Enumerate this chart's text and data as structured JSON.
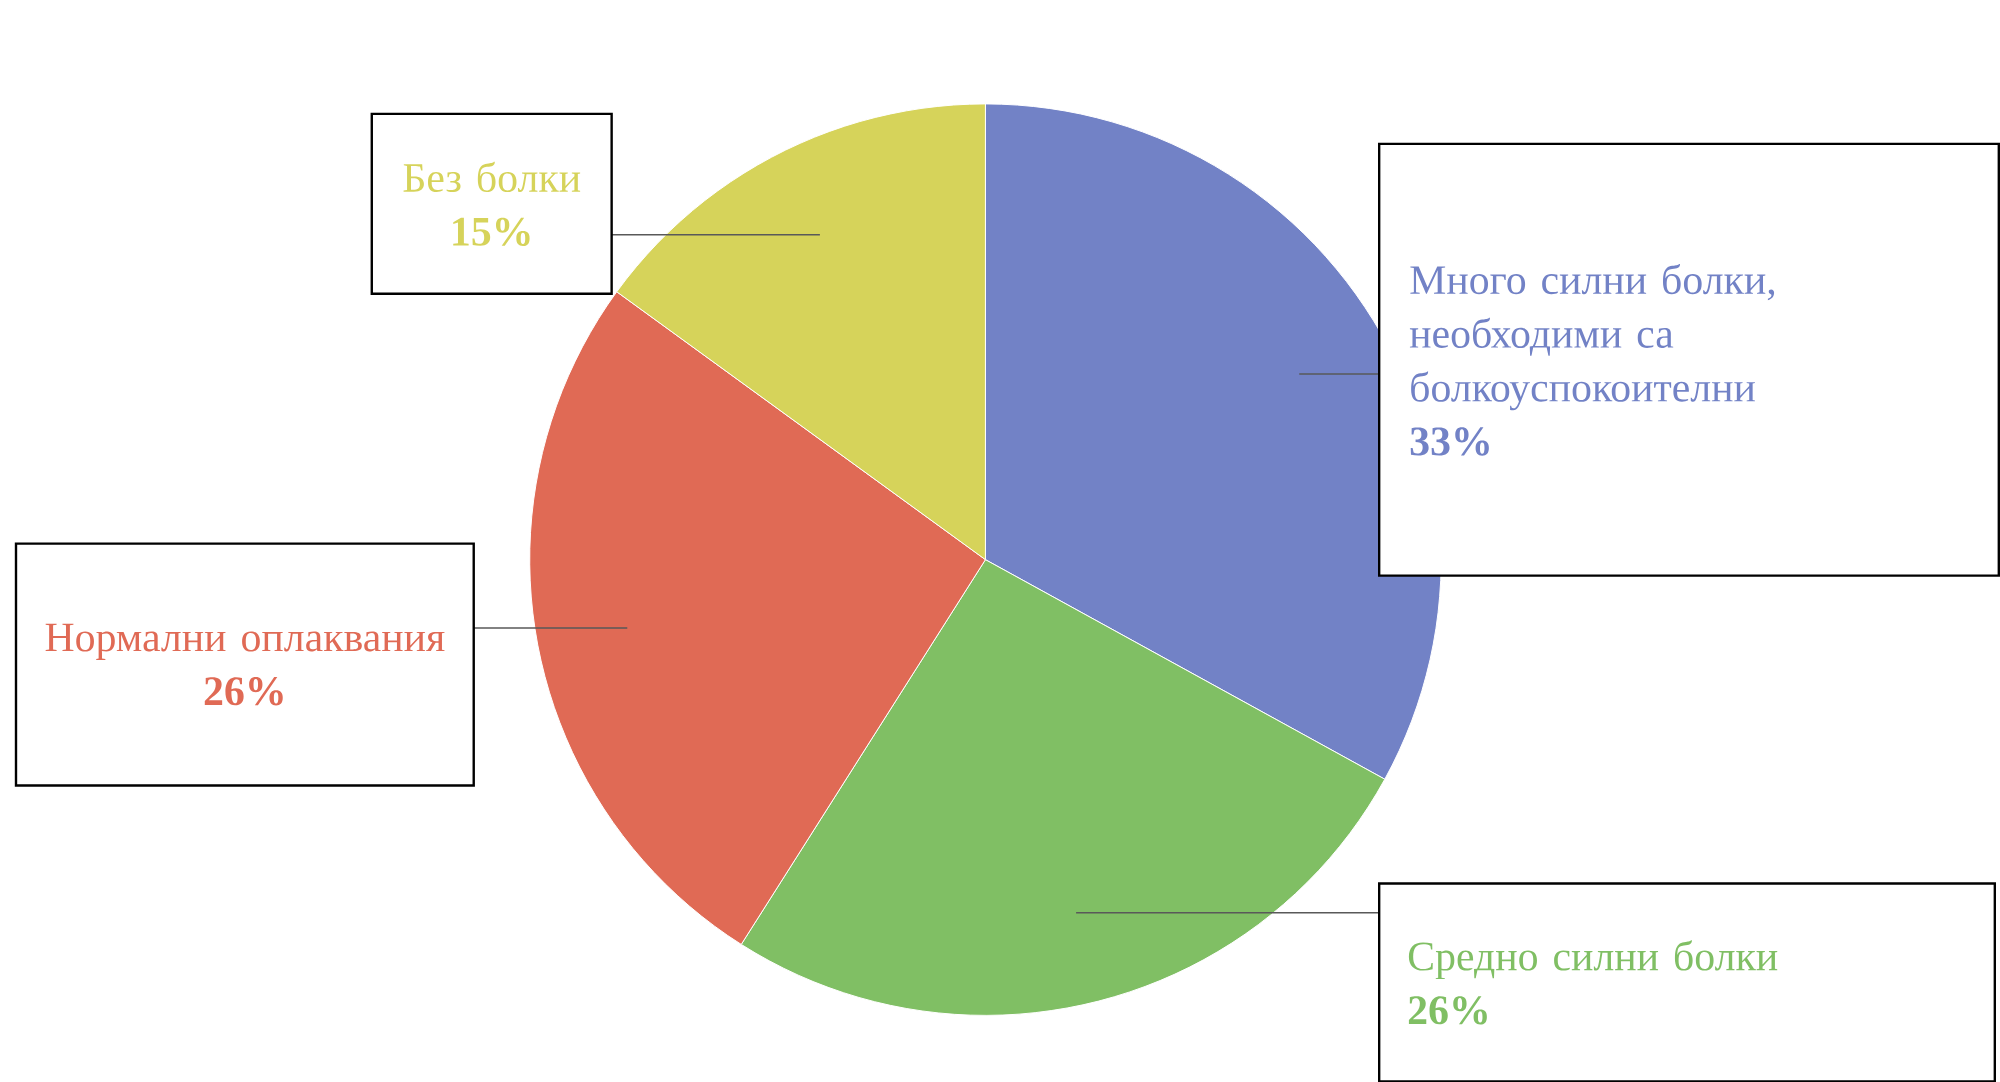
{
  "chart_data": {
    "type": "pie",
    "categories": [
      "Много силни болки, необходими са болкоуспокоителни",
      "Средно силни болки",
      "Нормални оплаквания",
      "Без болки"
    ],
    "values": [
      33,
      26,
      26,
      15
    ],
    "value_labels": [
      "33%",
      "26%",
      "26%",
      "15%"
    ],
    "colors": [
      "#7282c6",
      "#80bf64",
      "#e06a55",
      "#d6d35a"
    ]
  }
}
